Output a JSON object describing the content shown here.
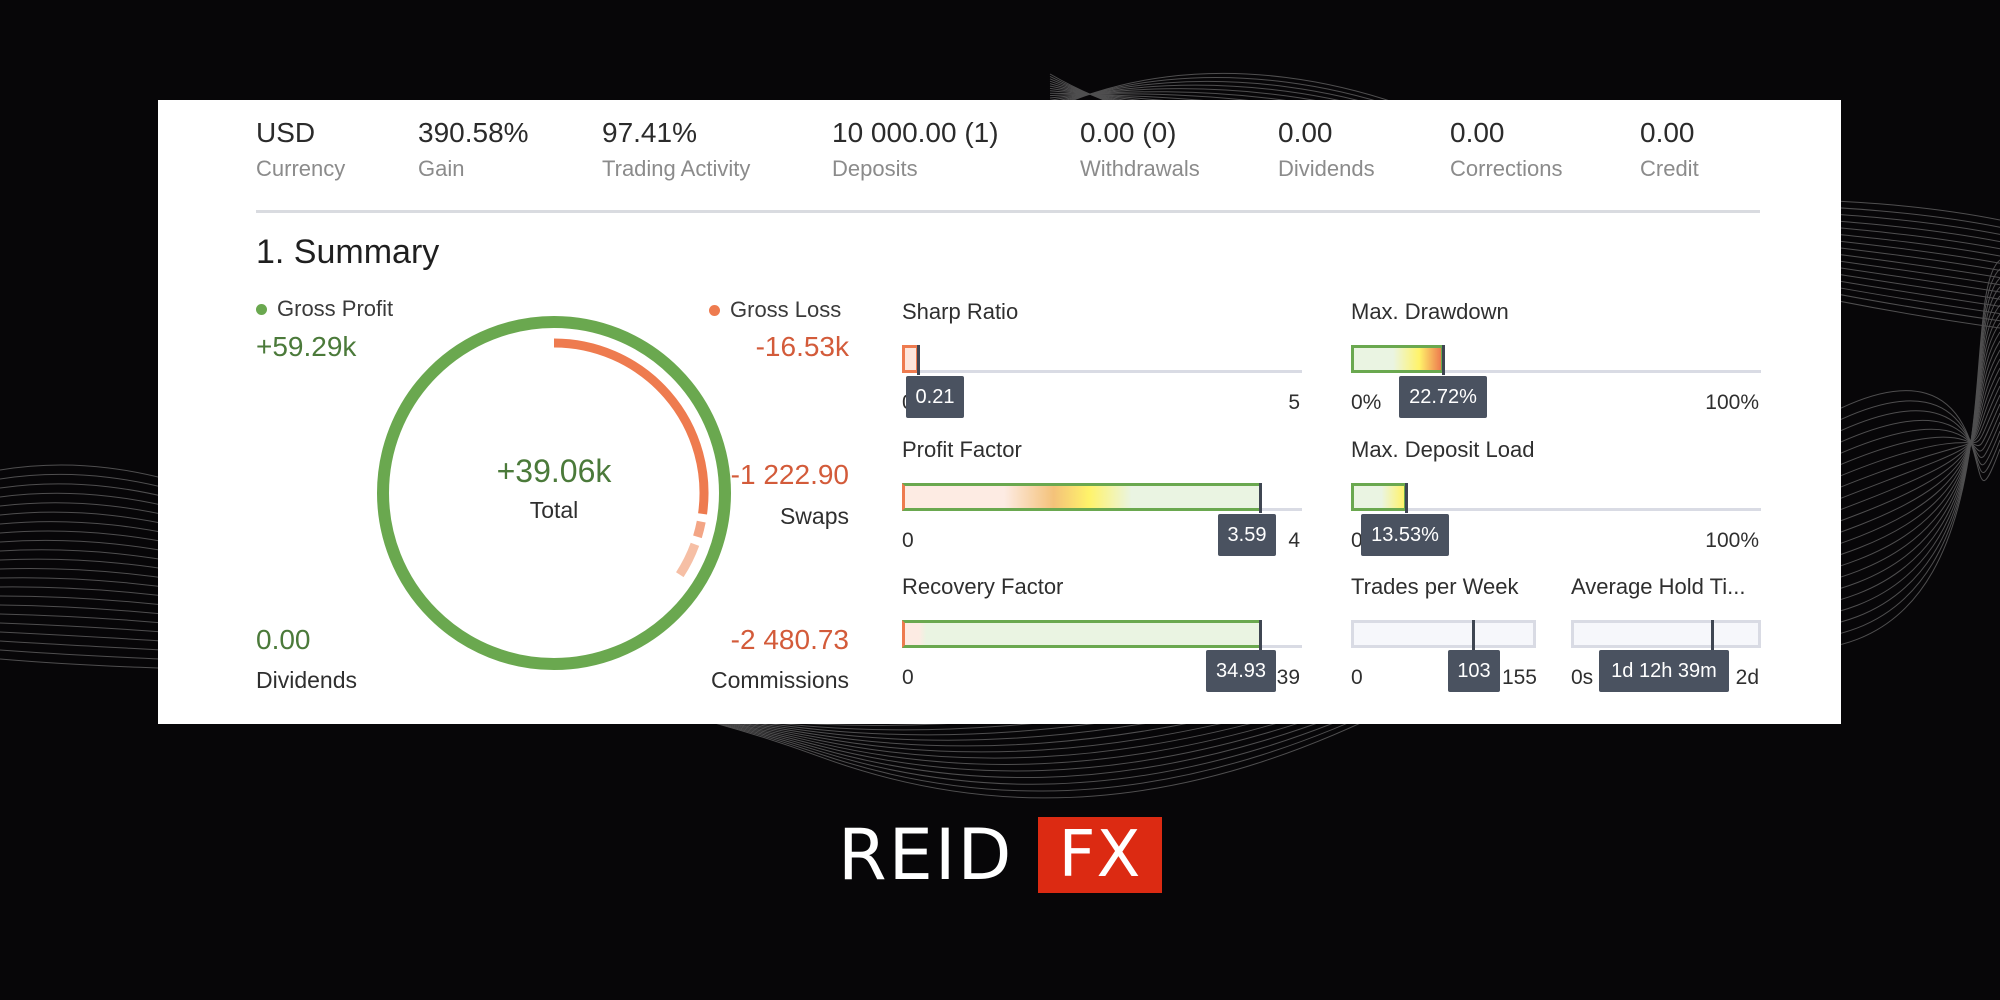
{
  "header_stats": [
    {
      "value": "USD",
      "label": "Currency"
    },
    {
      "value": "390.58%",
      "label": "Gain"
    },
    {
      "value": "97.41%",
      "label": "Trading Activity"
    },
    {
      "value": "10 000.00 (1)",
      "label": "Deposits"
    },
    {
      "value": "0.00 (0)",
      "label": "Withdrawals"
    },
    {
      "value": "0.00",
      "label": "Dividends"
    },
    {
      "value": "0.00",
      "label": "Corrections"
    },
    {
      "value": "0.00",
      "label": "Credit"
    }
  ],
  "summary": {
    "title": "1. Summary",
    "gross_profit": {
      "label": "Gross Profit",
      "value": "+59.29k",
      "color": "#6aa84f"
    },
    "gross_loss": {
      "label": "Gross Loss",
      "value": "-16.53k",
      "color": "#ee7b4f"
    },
    "total": {
      "value": "+39.06k",
      "label": "Total"
    },
    "swaps": {
      "value": "-1 222.90",
      "label": "Swaps"
    },
    "dividends": {
      "value": "0.00",
      "label": "Dividends"
    },
    "commissions": {
      "value": "-2 480.73",
      "label": "Commissions"
    }
  },
  "metrics": {
    "sharp_ratio": {
      "label": "Sharp Ratio",
      "value": "0.21",
      "min": "0",
      "max": "5",
      "fraction": 0.042
    },
    "max_drawdown": {
      "label": "Max. Drawdown",
      "value": "22.72%",
      "min": "0%",
      "max": "100%",
      "fraction": 0.2272
    },
    "profit_factor": {
      "label": "Profit Factor",
      "value": "3.59",
      "min": "0",
      "max": "4",
      "fraction": 0.8975
    },
    "max_deposit_load": {
      "label": "Max. Deposit Load",
      "value": "13.53%",
      "min": "0",
      "max": "100%",
      "fraction": 0.1353
    },
    "recovery_factor": {
      "label": "Recovery Factor",
      "value": "34.93",
      "min": "0",
      "max": "39",
      "fraction": 0.8956
    },
    "trades_per_week": {
      "label": "Trades per Week",
      "value": "103",
      "min": "0",
      "max": "155",
      "fraction": 0.6645
    },
    "average_hold_time": {
      "label": "Average Hold Ti...",
      "value": "1d 12h 39m",
      "min": "0s",
      "max": "2d",
      "fraction": 0.763
    }
  },
  "logo": {
    "text_a": "REID",
    "text_b": "FX",
    "accent": "#dc2a12"
  },
  "colors": {
    "profit": "#6aa84f",
    "loss": "#ee7b4f",
    "tooltip": "#4a5260",
    "background": "#070608"
  }
}
